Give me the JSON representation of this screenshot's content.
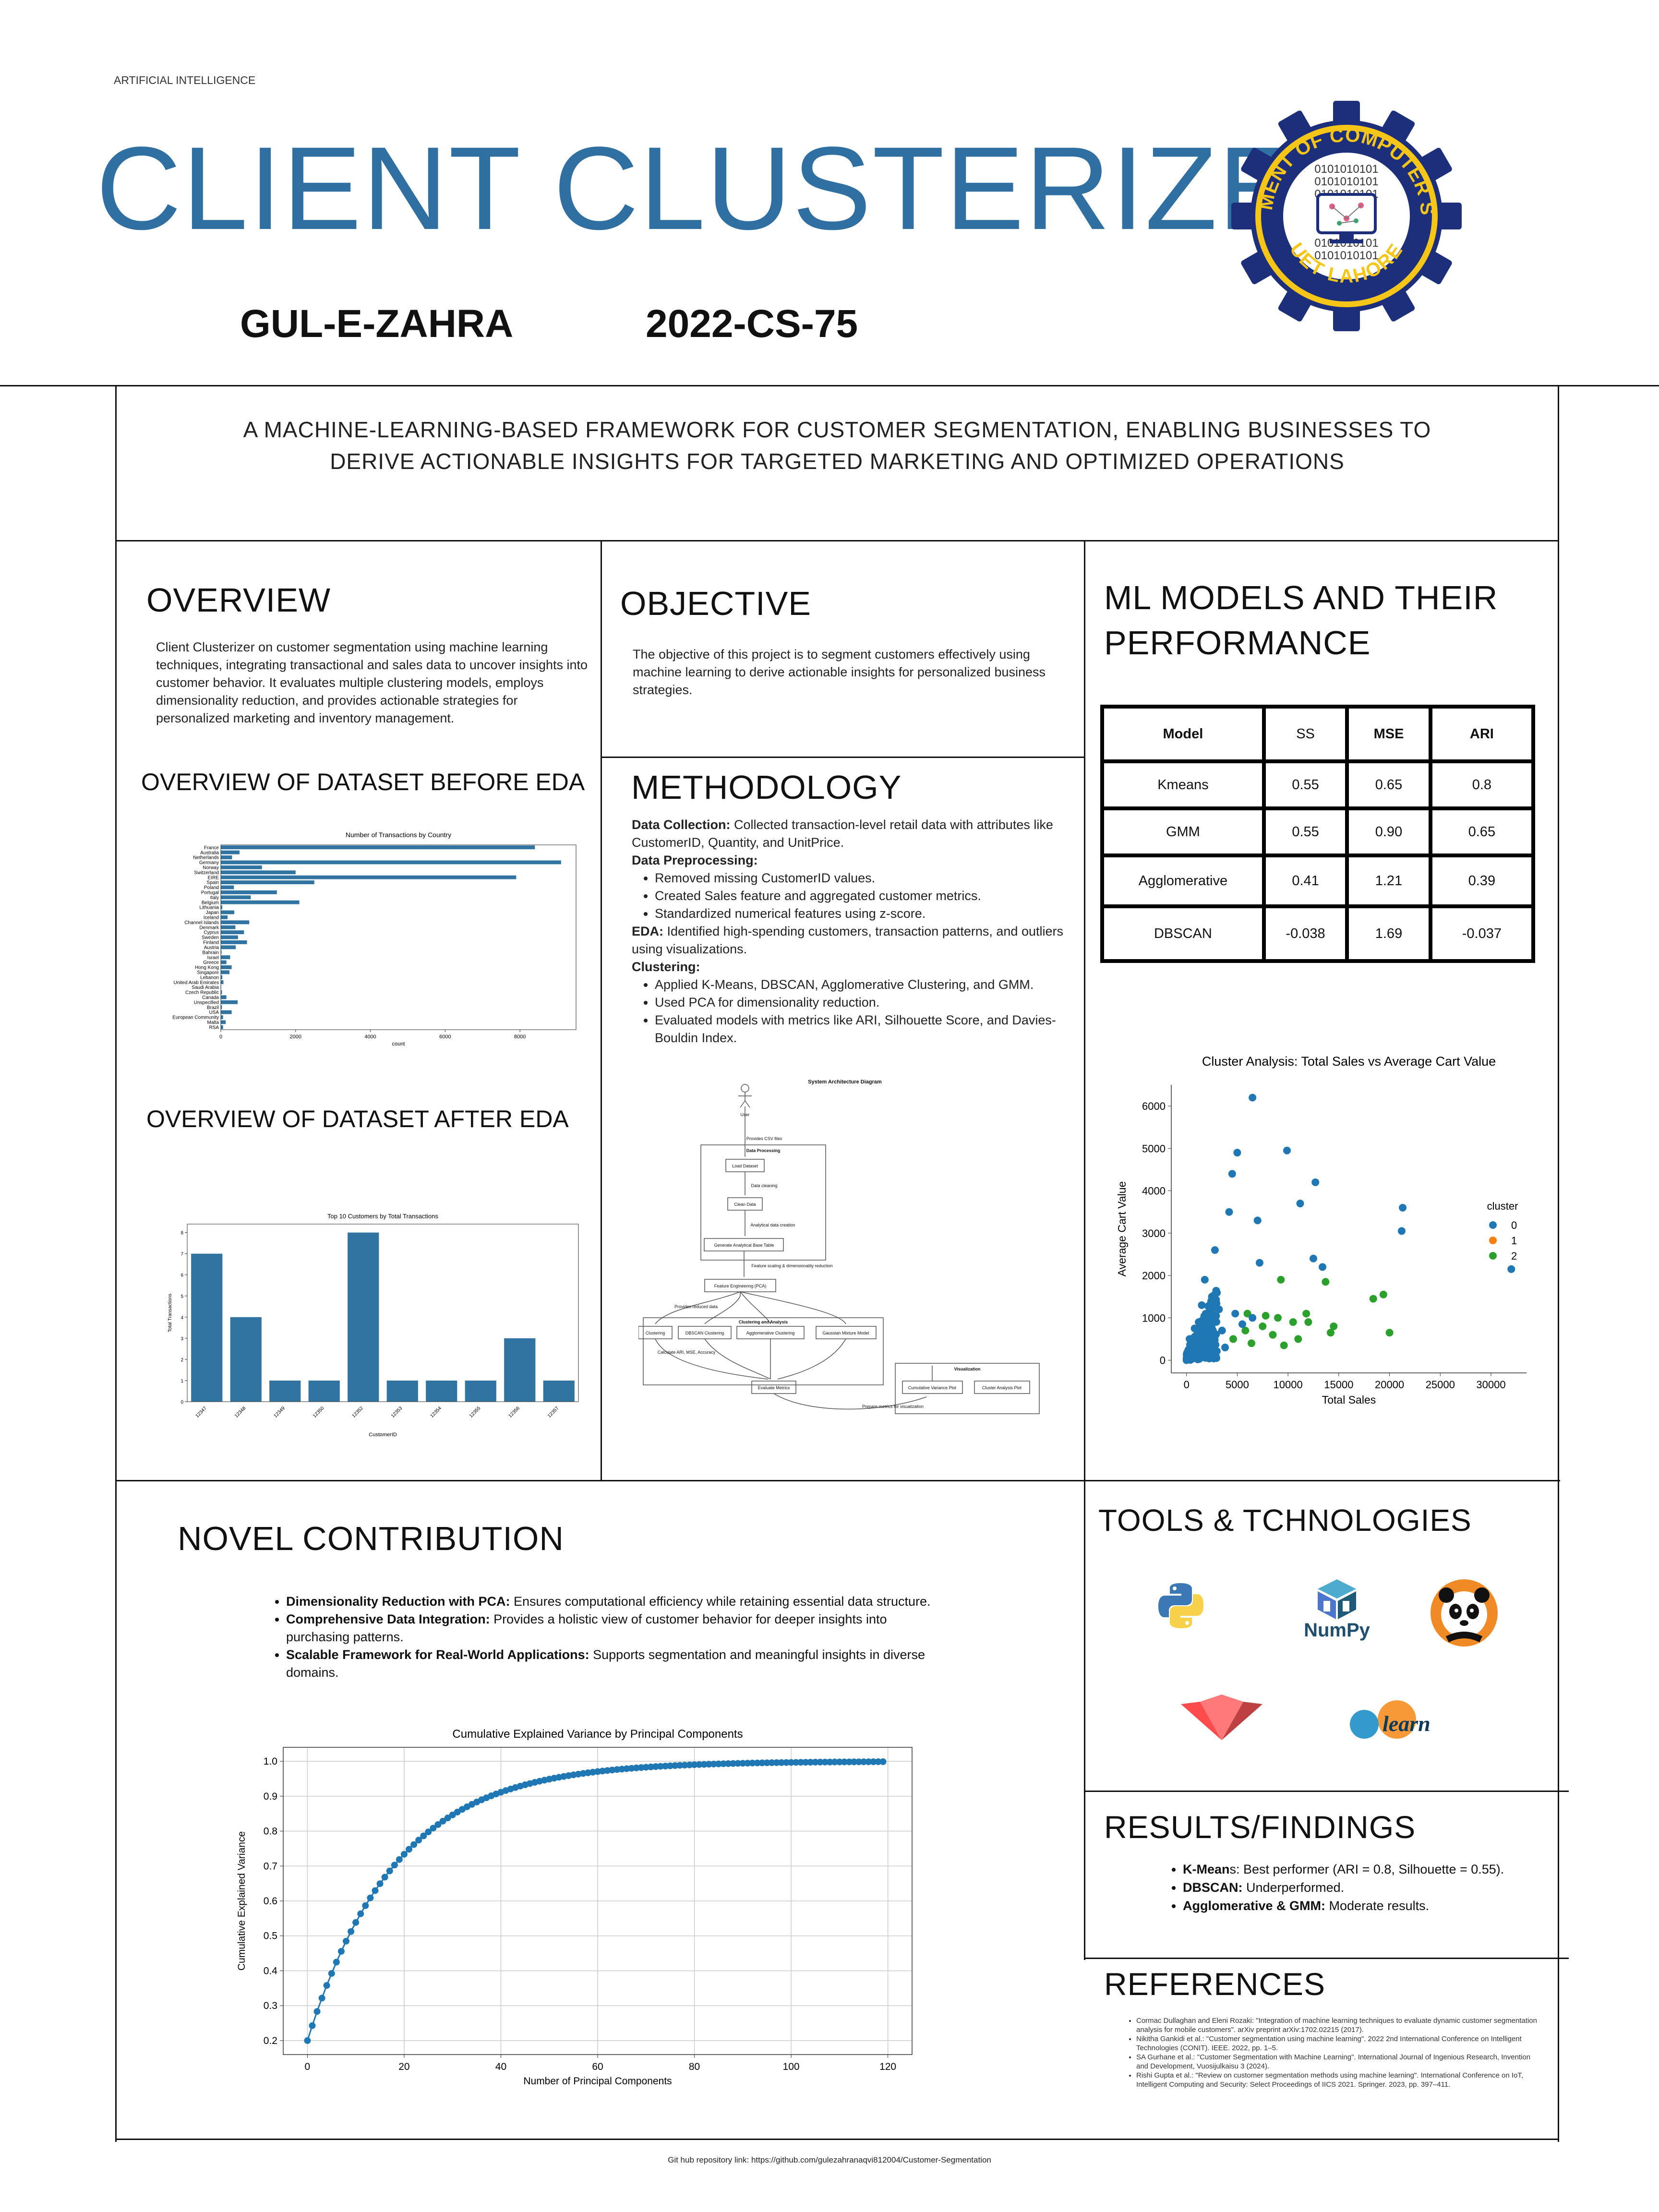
{
  "header": {
    "category": "ARTIFICIAL INTELLIGENCE",
    "title": "CLIENT CLUSTERIZER",
    "author": "GUL-E-ZAHRA",
    "roll": "2022-CS-75",
    "logo": {
      "ring_text_top": "DEPARTMENT OF COMPUTER SCIENCE",
      "ring_text_bottom": "UET LAHORE",
      "binary": "0101010101",
      "colors": {
        "gear": "#1d2f7a",
        "ring": "#f2c21b"
      }
    }
  },
  "tagline": {
    "line1": "A MACHINE-LEARNING-BASED FRAMEWORK FOR CUSTOMER SEGMENTATION, ENABLING BUSINESSES TO",
    "line2": "DERIVE ACTIONABLE INSIGHTS FOR TARGETED MARKETING AND OPTIMIZED OPERATIONS"
  },
  "overview": {
    "heading": "OVERVIEW",
    "text": "Client Clusterizer on customer segmentation using machine learning techniques, integrating transactional and sales data to uncover insights into customer behavior. It evaluates multiple clustering models, employs dimensionality reduction, and provides actionable strategies for personalized marketing and inventory management."
  },
  "objective": {
    "heading": "OBJECTIVE",
    "text": "The objective of this project is to segment customers effectively using machine learning to derive actionable insights for personalized business strategies."
  },
  "models": {
    "heading_line1": "ML MODELS AND THEIR",
    "heading_line2": "PERFORMANCE",
    "columns": [
      "Model",
      "SS",
      "MSE",
      "ARI"
    ],
    "rows": [
      [
        "Kmeans",
        "0.55",
        "0.65",
        "0.8"
      ],
      [
        "GMM",
        "0.55",
        "0.90",
        "0.65"
      ],
      [
        "Agglomerative",
        "0.41",
        "1.21",
        "0.39"
      ],
      [
        "DBSCAN",
        "-0.038",
        "1.69",
        "-0.037"
      ]
    ]
  },
  "dataset_before": {
    "heading": "OVERVIEW OF DATASET BEFORE EDA"
  },
  "dataset_after": {
    "heading": "OVERVIEW OF DATASET AFTER EDA"
  },
  "methodology": {
    "heading": "METHODOLOGY",
    "dc_label": "Data Collection:",
    "dc_text": " Collected transaction-level retail data with attributes like CustomerID, Quantity, and UnitPrice.",
    "dp_label": "Data Preprocessing:",
    "dp_items": [
      "Removed missing CustomerID values.",
      "Created Sales feature and aggregated customer metrics.",
      "Standardized numerical features using z-score."
    ],
    "eda_label": "EDA:",
    "eda_text": " Identified high-spending customers, transaction patterns, and outliers using visualizations.",
    "cl_label": "Clustering:",
    "cl_items": [
      "Applied K-Means, DBSCAN, Agglomerative Clustering, and GMM.",
      "Used PCA for dimensionality reduction.",
      "Evaluated models with metrics like ARI, Silhouette Score, and Davies-Bouldin Index."
    ]
  },
  "diagram": {
    "title": "System Architecture Diagram",
    "user": "User",
    "e_provides": "Provides CSV files",
    "dp_group": "Data Processing",
    "load": "Load Dataset",
    "e_clean": "Data cleaning",
    "clean": "Clean Data",
    "e_abt": "Analytical data creation",
    "abt": "Generate Analytical Base Table",
    "e_scale": "Feature scaling & dimensionality reduction",
    "fe": "Feature Engineering (PCA)",
    "e_reduced": "Provides reduced data",
    "ca_group": "Clustering and Analysis",
    "c1": "Clustering",
    "c2": "DBSCAN Clustering",
    "c3": "Agglomerative Clustering",
    "c4": "Gaussian Mixture Model",
    "e_metrics": "Calculate ARI, MSE, Accuracy",
    "eval": "Evaluate Metrics",
    "vis_group": "Visualization",
    "v1": "Cumulative Variance Plot",
    "v2": "Cluster Analysis Plot",
    "e_prepare": "Prepare metrics for visualization"
  },
  "novel": {
    "heading": "NOVEL CONTRIBUTION",
    "items": [
      {
        "label": "Dimensionality Reduction with PCA:",
        "text": " Ensures computational efficiency while retaining essential data structure."
      },
      {
        "label": "Comprehensive Data Integration:",
        "text": " Provides a holistic view of customer behavior for deeper insights into purchasing patterns."
      },
      {
        "label": "Scalable Framework for Real-World Applications:",
        "text": " Supports segmentation and meaningful insights in diverse domains."
      }
    ]
  },
  "tools": {
    "heading": "TOOLS & TCHNOLOGIES",
    "items": [
      {
        "icon": "python-icon",
        "label": ""
      },
      {
        "icon": "numpy-icon",
        "label": "NumPy"
      },
      {
        "icon": "pandas-panda-icon",
        "label": ""
      },
      {
        "icon": "streamlit-icon",
        "label": ""
      },
      {
        "icon": "scikit-learn-icon",
        "label": "learn"
      }
    ],
    "colors": {
      "python_blue": "#3c78b4",
      "python_yellow": "#f7d14a",
      "numpy": "#1f5b78",
      "pandas": "#f08a24",
      "streamlit": "#ee4b51",
      "sklearn_orange": "#f89938",
      "sklearn_blue": "#3499cd"
    }
  },
  "results": {
    "heading": "RESULTS/FINDINGS",
    "items": [
      {
        "label": "K-Mean",
        "text": "s: Best performer (ARI = 0.8, Silhouette = 0.55)."
      },
      {
        "label": "DBSCAN:",
        "text": " Underperformed."
      },
      {
        "label": "Agglomerative & GMM:",
        "text": " Moderate results."
      }
    ]
  },
  "references": {
    "heading": "REFERENCES",
    "items": [
      "Cormac Dullaghan and Eleni Rozaki: \"Integration of machine learning techniques to evaluate dynamic customer segmentation analysis for mobile customers\". arXiv preprint arXiv:1702.02215 (2017).",
      "Nikitha Gankidi et al.: \"Customer segmentation using machine learning\". 2022 2nd International Conference on Intelligent Technologies (CONIT). IEEE. 2022, pp. 1–5.",
      "SA Gurhane et al.: \"Customer Segmentation with Machine Learning\". International Journal of Ingenious Research, Invention and Development, Vuosijulkaisu 3 (2024).",
      "Rishi Gupta et al.: \"Review on customer segmentation methods using machine learning\". International Conference on IoT, Intelligent Computing and Security: Select Proceedings of IICS 2021. Springer. 2023, pp. 397–411."
    ]
  },
  "footer": "Git hub repository link: https://github.com/gulezahranaqvi812004/Customer-Segmentation",
  "chart_data": [
    {
      "type": "bar",
      "orientation": "horizontal",
      "title": "Number of Transactions by Country",
      "xlabel": "count",
      "ylabel": "",
      "xlim": [
        0,
        9500
      ],
      "xticks": [
        0,
        2000,
        4000,
        6000,
        8000
      ],
      "categories": [
        "France",
        "Australia",
        "Netherlands",
        "Germany",
        "Norway",
        "Switzerland",
        "EIRE",
        "Spain",
        "Poland",
        "Portugal",
        "Italy",
        "Belgium",
        "Lithuania",
        "Japan",
        "Iceland",
        "Channel Islands",
        "Denmark",
        "Cyprus",
        "Sweden",
        "Finland",
        "Austria",
        "Bahrain",
        "Israel",
        "Greece",
        "Hong Kong",
        "Singapore",
        "Lebanon",
        "United Arab Emirates",
        "Saudi Arabia",
        "Czech Republic",
        "Canada",
        "Unspecified",
        "Brazil",
        "USA",
        "European Community",
        "Malta",
        "RSA"
      ],
      "values": [
        8400,
        500,
        300,
        9100,
        1100,
        2000,
        7900,
        2500,
        350,
        1500,
        800,
        2100,
        40,
        360,
        180,
        760,
        390,
        620,
        460,
        700,
        400,
        20,
        250,
        150,
        290,
        230,
        40,
        70,
        10,
        30,
        150,
        450,
        30,
        290,
        60,
        130,
        60
      ],
      "color": "#3274a1"
    },
    {
      "type": "bar",
      "title": "Top 10 Customers by Total Transactions",
      "xlabel": "CustomerID",
      "ylabel": "Total Transactions",
      "ylim": [
        0,
        8.4
      ],
      "yticks": [
        0,
        1,
        2,
        3,
        4,
        5,
        6,
        7,
        8
      ],
      "categories": [
        "12347",
        "12348",
        "12349",
        "12350",
        "12352",
        "12353",
        "12354",
        "12355",
        "12356",
        "12357"
      ],
      "values": [
        7,
        4,
        1,
        1,
        8,
        1,
        1,
        1,
        3,
        1
      ],
      "color": "#3274a1"
    },
    {
      "type": "scatter",
      "title": "Cluster Analysis: Total Sales vs Average Cart Value",
      "xlabel": "Total Sales",
      "ylabel": "Average Cart Value",
      "xlim": [
        -1500,
        33500
      ],
      "ylim": [
        -300,
        6500
      ],
      "xticks": [
        0,
        5000,
        10000,
        15000,
        20000,
        25000,
        30000
      ],
      "yticks": [
        0,
        1000,
        2000,
        3000,
        4000,
        5000,
        6000
      ],
      "legend_title": "cluster",
      "legend_position": "right",
      "series": [
        {
          "name": "0",
          "color": "#1f77b4",
          "points": [
            [
              6500,
              6200
            ],
            [
              9900,
              4950
            ],
            [
              5000,
              4900
            ],
            [
              4500,
              4400
            ],
            [
              12700,
              4200
            ],
            [
              11200,
              3700
            ],
            [
              21300,
              3600
            ],
            [
              4200,
              3500
            ],
            [
              21200,
              3050
            ],
            [
              7000,
              3300
            ],
            [
              32000,
              2150
            ],
            [
              12500,
              2400
            ],
            [
              13400,
              2200
            ],
            [
              7200,
              2300
            ],
            [
              2800,
              2600
            ],
            [
              1800,
              1900
            ],
            [
              2500,
              1500
            ],
            [
              3200,
              1200
            ],
            [
              4800,
              1100
            ],
            [
              1500,
              1300
            ],
            [
              6500,
              1000
            ],
            [
              2000,
              600
            ],
            [
              900,
              350
            ],
            [
              600,
              150
            ],
            [
              3500,
              700
            ],
            [
              5500,
              850
            ],
            [
              300,
              500
            ],
            [
              1200,
              900
            ],
            [
              2200,
              1000
            ],
            [
              2600,
              700
            ],
            [
              1700,
              300
            ],
            [
              800,
              750
            ],
            [
              3800,
              300
            ]
          ]
        },
        {
          "name": "1",
          "color": "#ff7f0e",
          "points": []
        },
        {
          "name": "2",
          "color": "#2ca02c",
          "points": [
            [
              9300,
              1900
            ],
            [
              13700,
              1850
            ],
            [
              14200,
              650
            ],
            [
              14500,
              800
            ],
            [
              18400,
              1450
            ],
            [
              19400,
              1550
            ],
            [
              20000,
              650
            ],
            [
              9000,
              1000
            ],
            [
              7500,
              800
            ],
            [
              10500,
              900
            ],
            [
              8500,
              600
            ],
            [
              11000,
              500
            ],
            [
              6400,
              400
            ],
            [
              5800,
              700
            ],
            [
              6000,
              1100
            ],
            [
              12000,
              900
            ],
            [
              4600,
              500
            ],
            [
              7800,
              1050
            ],
            [
              11800,
              1100
            ],
            [
              9600,
              350
            ]
          ]
        }
      ]
    },
    {
      "type": "line",
      "title": "Cumulative Explained Variance by Principal Components",
      "xlabel": "Number of Principal Components",
      "ylabel": "Cumulative Explained Variance",
      "xlim": [
        -5,
        125
      ],
      "ylim": [
        0.16,
        1.04
      ],
      "xticks": [
        0,
        20,
        40,
        60,
        80,
        100,
        120
      ],
      "yticks": [
        0.2,
        0.3,
        0.4,
        0.5,
        0.6,
        0.7,
        0.8,
        0.9,
        1.0
      ],
      "grid": true,
      "marker": "circle",
      "color": "#1f77b4",
      "series": [
        {
          "x_start": 0,
          "x_end": 119,
          "y_start": 0.2,
          "y_end": 1.0,
          "decay_rate": 0.055
        }
      ]
    }
  ]
}
